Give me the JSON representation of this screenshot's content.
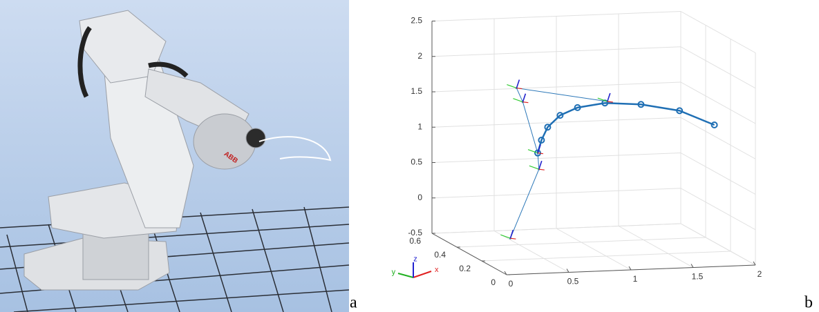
{
  "photo": {
    "logo": "ABB"
  },
  "panel_labels": [
    "a",
    "b"
  ],
  "chart_data": {
    "type": "line3d",
    "xlim": [
      0,
      2
    ],
    "ylim": [
      0,
      0.6
    ],
    "zlim": [
      -0.5,
      2.5
    ],
    "xticks": [
      0,
      0.5,
      1,
      1.5,
      2
    ],
    "yticks": [
      0,
      0.2,
      0.4,
      0.6
    ],
    "zticks": [
      -0.5,
      0,
      0.5,
      1,
      1.5,
      2,
      2.5
    ],
    "grid": true,
    "triad_labels": [
      "x",
      "y",
      "z"
    ],
    "triad_colors": [
      "#e02020",
      "#20b020",
      "#2020d0"
    ],
    "series": [
      {
        "color": "#1f6fb4",
        "marker": "circle",
        "x": [
          0.55,
          0.58,
          0.63,
          0.73,
          0.87,
          1.09,
          1.38,
          1.69,
          1.97
        ],
        "y": [
          0.3,
          0.3,
          0.3,
          0.3,
          0.3,
          0.3,
          0.3,
          0.3,
          0.3
        ],
        "z": [
          0.89,
          1.07,
          1.25,
          1.41,
          1.51,
          1.56,
          1.52,
          1.41,
          1.19
        ]
      },
      {
        "color": "#2b77b8",
        "x": [
          0.33,
          0.56,
          0.55,
          0.43,
          0.38,
          1.11
        ],
        "y": [
          0.3,
          0.3,
          0.3,
          0.3,
          0.3,
          0.3
        ],
        "z": [
          -0.3,
          0.66,
          0.89,
          1.62,
          1.82,
          1.58
        ]
      }
    ]
  }
}
